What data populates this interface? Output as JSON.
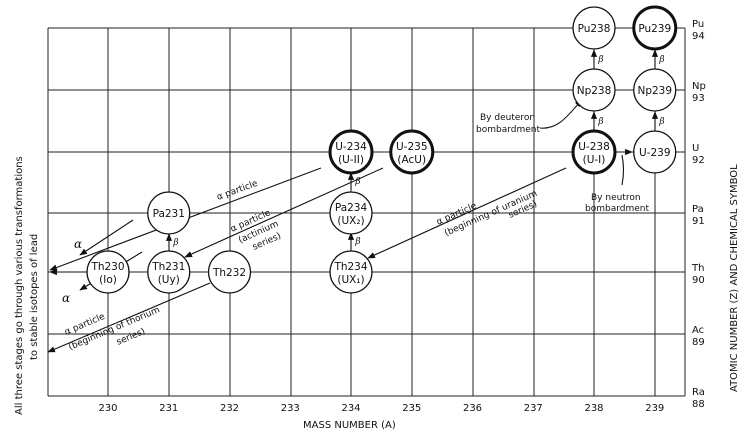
{
  "chart_data": {
    "type": "diagram",
    "x_axis": {
      "label": "MASS NUMBER (A)",
      "ticks": [
        "230",
        "231",
        "232",
        "233",
        "234",
        "235",
        "236",
        "237",
        "238",
        "239"
      ]
    },
    "y_axis": {
      "label": "ATOMIC NUMBER (Z) AND CHEMICAL SYMBOL",
      "ticks": [
        {
          "symbol": "Pu",
          "z": "94"
        },
        {
          "symbol": "Np",
          "z": "93"
        },
        {
          "symbol": "U",
          "z": "92"
        },
        {
          "symbol": "Pa",
          "z": "91"
        },
        {
          "symbol": "Th",
          "z": "90"
        },
        {
          "symbol": "Ac",
          "z": "89"
        },
        {
          "symbol": "Ra",
          "z": "88"
        }
      ]
    },
    "nodes": [
      {
        "id": "pu238",
        "a": 238,
        "z": 94,
        "label": "Pu238",
        "sub": "",
        "thick": false
      },
      {
        "id": "pu239",
        "a": 239,
        "z": 94,
        "label": "Pu239",
        "sub": "",
        "thick": true
      },
      {
        "id": "np238",
        "a": 238,
        "z": 93,
        "label": "Np238",
        "sub": "",
        "thick": false
      },
      {
        "id": "np239",
        "a": 239,
        "z": 93,
        "label": "Np239",
        "sub": "",
        "thick": false
      },
      {
        "id": "u234",
        "a": 234,
        "z": 92,
        "label": "U-234",
        "sub": "(U-II)",
        "thick": true
      },
      {
        "id": "u235",
        "a": 235,
        "z": 92,
        "label": "U-235",
        "sub": "(AcU)",
        "thick": true
      },
      {
        "id": "u238",
        "a": 238,
        "z": 92,
        "label": "U-238",
        "sub": "(U-I)",
        "thick": true
      },
      {
        "id": "u239",
        "a": 239,
        "z": 92,
        "label": "U-239",
        "sub": "",
        "thick": false
      },
      {
        "id": "pa231",
        "a": 231,
        "z": 91,
        "label": "Pa231",
        "sub": "",
        "thick": false
      },
      {
        "id": "pa234",
        "a": 234,
        "z": 91,
        "label": "Pa234",
        "sub": "(UX₂)",
        "thick": false
      },
      {
        "id": "th230",
        "a": 230,
        "z": 90,
        "label": "Th230",
        "sub": "(Io)",
        "thick": false
      },
      {
        "id": "th231",
        "a": 231,
        "z": 90,
        "label": "Th231",
        "sub": "(Uy)",
        "thick": false
      },
      {
        "id": "th232",
        "a": 232,
        "z": 90,
        "label": "Th232",
        "sub": "",
        "thick": false
      },
      {
        "id": "th234",
        "a": 234,
        "z": 90,
        "label": "Th234",
        "sub": "(UX₁)",
        "thick": false
      }
    ],
    "beta_label": "β",
    "alpha_label": "α",
    "annotations": {
      "left_line1": "All three stages go through various transformations",
      "left_line2": "to stable isotopes of lead",
      "deuteron_1": "By deuteron",
      "deuteron_2": "bombardment",
      "neutron_1": "By neutron",
      "neutron_2": "bombardment",
      "alpha_particle": "α  particle",
      "actinium_1": "α  particle",
      "actinium_2": "(actinium",
      "actinium_3": "series)",
      "thorium_1": "α  particle",
      "thorium_2": "(beginning of thorium",
      "thorium_3": "series)",
      "uranium_1": "α  particle",
      "uranium_2": "(beginning of uranium",
      "uranium_3": "series)"
    }
  }
}
